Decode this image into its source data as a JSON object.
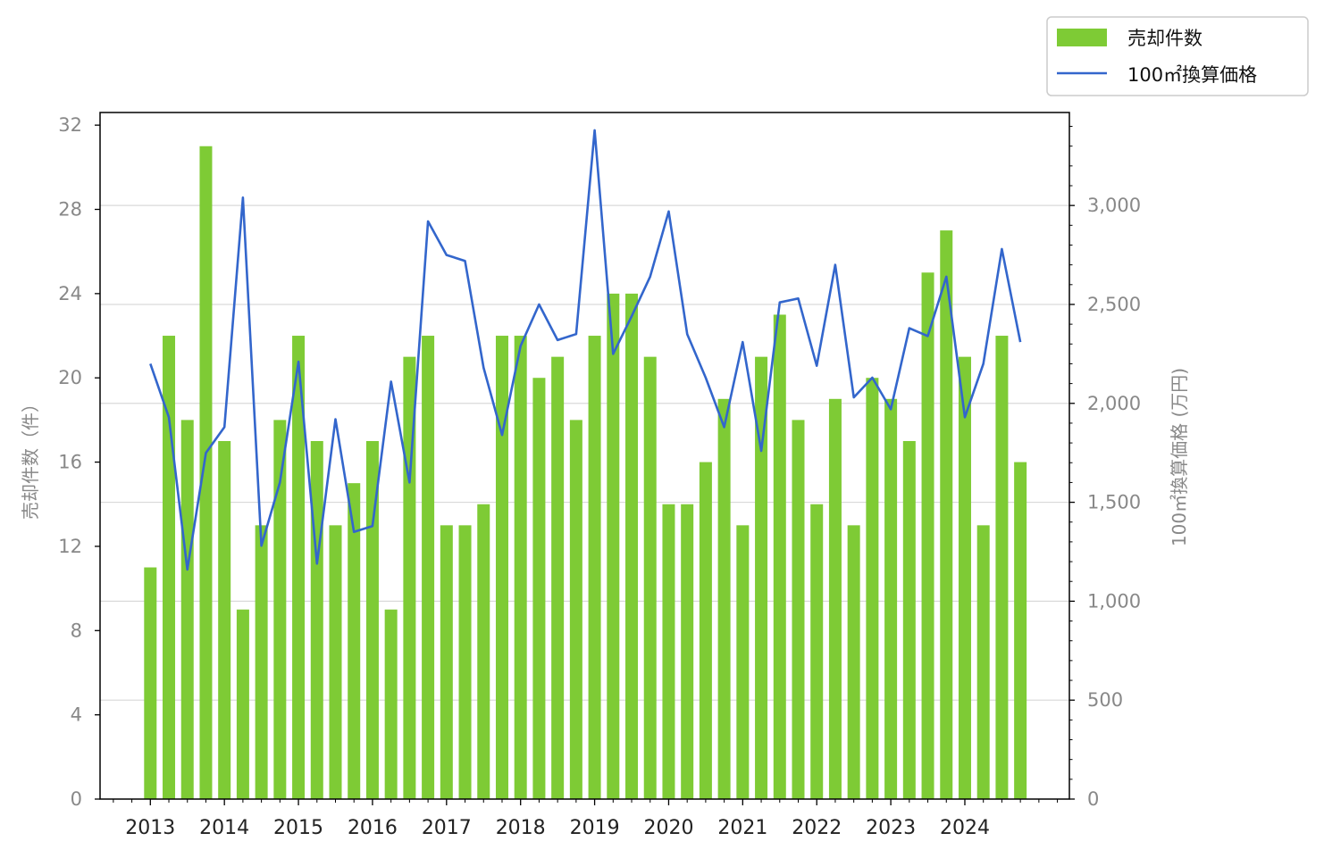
{
  "chart_data": {
    "type": "bar",
    "title": "",
    "ylabel": "売却件数（件）",
    "ylabel_right": "100㎡換算価格 (万円)",
    "ylim": [
      0,
      32.6
    ],
    "ylim_right": [
      0,
      3470
    ],
    "y_ticks": [
      0,
      4,
      8,
      12,
      16,
      20,
      24,
      28,
      32
    ],
    "y_right_ticks": [
      0,
      500,
      1000,
      1500,
      2000,
      2500,
      3000
    ],
    "y_right_tick_labels": [
      "0",
      "500",
      "1,000",
      "1,500",
      "2,000",
      "2,500",
      "3,000"
    ],
    "x_tick_labels": [
      "2013",
      "2014",
      "2015",
      "2016",
      "2017",
      "2018",
      "2019",
      "2020",
      "2021",
      "2022",
      "2023",
      "2024"
    ],
    "grid": "horizontal (right axis)",
    "legend_position": "top-right",
    "bar_color": "#7ecb35",
    "line_color": "#3366cc",
    "categories": [
      "2013Q1",
      "2013Q2",
      "2013Q3",
      "2013Q4",
      "2014Q1",
      "2014Q2",
      "2014Q3",
      "2014Q4",
      "2015Q1",
      "2015Q2",
      "2015Q3",
      "2015Q4",
      "2016Q1",
      "2016Q2",
      "2016Q3",
      "2016Q4",
      "2017Q1",
      "2017Q2",
      "2017Q3",
      "2017Q4",
      "2018Q1",
      "2018Q2",
      "2018Q3",
      "2018Q4",
      "2019Q1",
      "2019Q2",
      "2019Q3",
      "2019Q4",
      "2020Q1",
      "2020Q2",
      "2020Q3",
      "2020Q4",
      "2021Q1",
      "2021Q2",
      "2021Q3",
      "2021Q4",
      "2022Q1",
      "2022Q2",
      "2022Q3",
      "2022Q4",
      "2023Q1",
      "2023Q2",
      "2023Q3",
      "2023Q4",
      "2024Q1",
      "2024Q2",
      "2024Q3",
      "2024Q4"
    ],
    "series": [
      {
        "name": "売却件数",
        "type": "bar",
        "axis": "left",
        "values": [
          11,
          22,
          18,
          31,
          17,
          9,
          13,
          18,
          22,
          17,
          13,
          15,
          17,
          9,
          21,
          22,
          13,
          13,
          14,
          22,
          22,
          20,
          21,
          18,
          22,
          24,
          24,
          21,
          14,
          14,
          16,
          19,
          13,
          21,
          23,
          18,
          14,
          19,
          13,
          20,
          19,
          17,
          25,
          27,
          21,
          13,
          22,
          16
        ]
      },
      {
        "name": "100㎡換算価格",
        "type": "line",
        "axis": "right",
        "values": [
          2200,
          1930,
          1160,
          1750,
          1880,
          3040,
          1280,
          1600,
          2210,
          1190,
          1920,
          1350,
          1380,
          2110,
          1600,
          2920,
          2750,
          2720,
          2180,
          1840,
          2290,
          2500,
          2320,
          2350,
          3380,
          2250,
          2440,
          2640,
          2970,
          2350,
          2130,
          1880,
          2310,
          1760,
          2510,
          2530,
          2190,
          2700,
          2030,
          2130,
          1970,
          2380,
          2340,
          2640,
          1930,
          2200,
          2780,
          2310
        ]
      }
    ]
  }
}
